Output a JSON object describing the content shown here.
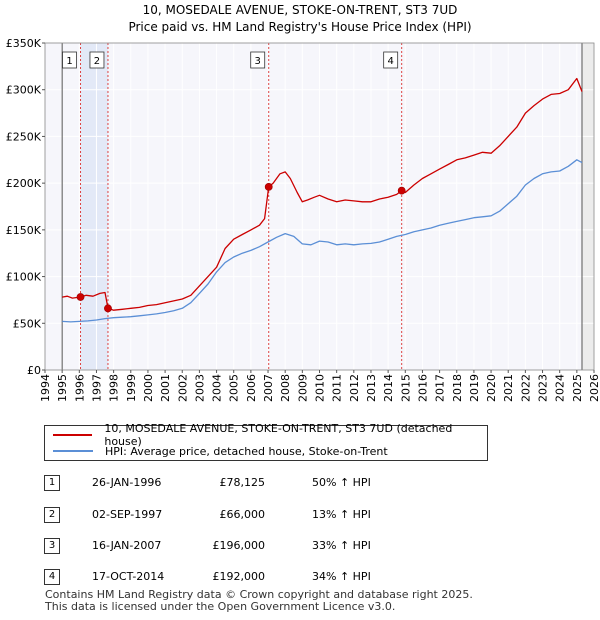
{
  "title": {
    "line1": "10, MOSEDALE AVENUE, STOKE-ON-TRENT, ST3 7UD",
    "line2": "Price paid vs. HM Land Registry's House Price Index (HPI)"
  },
  "chart_data": {
    "type": "line",
    "title": "10, MOSEDALE AVENUE, STOKE-ON-TRENT, ST3 7UD — Price paid vs. HM Land Registry's House Price Index (HPI)",
    "xlabel": "",
    "ylabel": "",
    "xlim": [
      1994,
      2026
    ],
    "ylim": [
      0,
      350000
    ],
    "x_ticks": [
      1994,
      1995,
      1996,
      1997,
      1998,
      1999,
      2000,
      2001,
      2002,
      2003,
      2004,
      2005,
      2006,
      2007,
      2008,
      2009,
      2010,
      2011,
      2012,
      2013,
      2014,
      2015,
      2016,
      2017,
      2018,
      2019,
      2020,
      2021,
      2022,
      2023,
      2024,
      2025,
      2026
    ],
    "y_ticks": [
      {
        "value": 0,
        "label": "£0"
      },
      {
        "value": 50000,
        "label": "£50K"
      },
      {
        "value": 100000,
        "label": "£100K"
      },
      {
        "value": 150000,
        "label": "£150K"
      },
      {
        "value": 200000,
        "label": "£200K"
      },
      {
        "value": 250000,
        "label": "£250K"
      },
      {
        "value": 300000,
        "label": "£300K"
      },
      {
        "value": 350000,
        "label": "£350K"
      }
    ],
    "grid": true,
    "data_start_year": 1995.0,
    "data_end_year": 2025.3,
    "shaded_ranges": [
      [
        1996.07,
        1997.67
      ]
    ],
    "series": [
      {
        "name": "10, MOSEDALE AVENUE, STOKE-ON-TRENT, ST3 7UD (detached house)",
        "color": "#cc0000",
        "x": [
          1995.0,
          1995.3,
          1995.6,
          1996.07,
          1996.4,
          1996.8,
          1997.2,
          1997.5,
          1997.67,
          1998.0,
          1998.5,
          1999.0,
          1999.5,
          2000.0,
          2000.5,
          2001.0,
          2001.5,
          2002.0,
          2002.5,
          2003.0,
          2003.5,
          2004.0,
          2004.5,
          2005.0,
          2005.5,
          2006.0,
          2006.5,
          2006.8,
          2007.04,
          2007.3,
          2007.7,
          2008.0,
          2008.3,
          2008.7,
          2009.0,
          2009.3,
          2009.7,
          2010.0,
          2010.5,
          2011.0,
          2011.5,
          2012.0,
          2012.5,
          2013.0,
          2013.5,
          2014.0,
          2014.5,
          2014.79,
          2015.0,
          2015.5,
          2016.0,
          2016.5,
          2017.0,
          2017.5,
          2018.0,
          2018.5,
          2019.0,
          2019.5,
          2020.0,
          2020.5,
          2021.0,
          2021.5,
          2022.0,
          2022.5,
          2023.0,
          2023.5,
          2024.0,
          2024.5,
          2025.0,
          2025.3
        ],
        "values": [
          78000,
          79000,
          77000,
          78125,
          80000,
          79000,
          82000,
          83000,
          66000,
          64000,
          65000,
          66000,
          67000,
          69000,
          70000,
          72000,
          74000,
          76000,
          80000,
          90000,
          100000,
          110000,
          130000,
          140000,
          145000,
          150000,
          155000,
          162000,
          196000,
          200000,
          210000,
          212000,
          205000,
          190000,
          180000,
          182000,
          185000,
          187000,
          183000,
          180000,
          182000,
          181000,
          180000,
          180000,
          183000,
          185000,
          188000,
          192000,
          190000,
          198000,
          205000,
          210000,
          215000,
          220000,
          225000,
          227000,
          230000,
          233000,
          232000,
          240000,
          250000,
          260000,
          275000,
          283000,
          290000,
          295000,
          296000,
          300000,
          312000,
          298000
        ]
      },
      {
        "name": "HPI: Average price, detached house, Stoke-on-Trent",
        "color": "#5b8fd6",
        "x": [
          1995.0,
          1995.5,
          1996.0,
          1996.5,
          1997.0,
          1997.5,
          1998.0,
          1998.5,
          1999.0,
          1999.5,
          2000.0,
          2000.5,
          2001.0,
          2001.5,
          2002.0,
          2002.5,
          2003.0,
          2003.5,
          2004.0,
          2004.5,
          2005.0,
          2005.5,
          2006.0,
          2006.5,
          2007.0,
          2007.5,
          2008.0,
          2008.5,
          2009.0,
          2009.5,
          2010.0,
          2010.5,
          2011.0,
          2011.5,
          2012.0,
          2012.5,
          2013.0,
          2013.5,
          2014.0,
          2014.5,
          2015.0,
          2015.5,
          2016.0,
          2016.5,
          2017.0,
          2017.5,
          2018.0,
          2018.5,
          2019.0,
          2019.5,
          2020.0,
          2020.5,
          2021.0,
          2021.5,
          2022.0,
          2022.5,
          2023.0,
          2023.5,
          2024.0,
          2024.5,
          2025.0,
          2025.3
        ],
        "values": [
          52000,
          51500,
          52000,
          52500,
          53500,
          55000,
          56000,
          56500,
          57000,
          58000,
          59000,
          60000,
          61500,
          63500,
          66000,
          72000,
          82000,
          92000,
          105000,
          115000,
          121000,
          125000,
          128000,
          132000,
          137000,
          142000,
          146000,
          143000,
          135000,
          134000,
          138000,
          137000,
          134000,
          135000,
          134000,
          135000,
          135500,
          137000,
          140000,
          143000,
          145000,
          148000,
          150000,
          152000,
          155000,
          157000,
          159000,
          161000,
          163000,
          164000,
          165000,
          170000,
          178000,
          186000,
          198000,
          205000,
          210000,
          212000,
          213000,
          218000,
          225000,
          222000
        ]
      }
    ],
    "markers": [
      {
        "num": "1",
        "x": 1996.07,
        "y": 78125
      },
      {
        "num": "2",
        "x": 1997.67,
        "y": 66000
      },
      {
        "num": "3",
        "x": 2007.04,
        "y": 196000
      },
      {
        "num": "4",
        "x": 2014.79,
        "y": 192000
      }
    ]
  },
  "legend": {
    "items": [
      {
        "label": "10, MOSEDALE AVENUE, STOKE-ON-TRENT, ST3 7UD (detached house)",
        "color": "#cc0000"
      },
      {
        "label": "HPI: Average price, detached house, Stoke-on-Trent",
        "color": "#5b8fd6"
      }
    ]
  },
  "transactions": [
    {
      "num": "1",
      "date": "26-JAN-1996",
      "price": "£78,125",
      "hpi": "50% ↑ HPI"
    },
    {
      "num": "2",
      "date": "02-SEP-1997",
      "price": "£66,000",
      "hpi": "13% ↑ HPI"
    },
    {
      "num": "3",
      "date": "16-JAN-2007",
      "price": "£196,000",
      "hpi": "33% ↑ HPI"
    },
    {
      "num": "4",
      "date": "17-OCT-2014",
      "price": "£192,000",
      "hpi": "34% ↑ HPI"
    }
  ],
  "footer": {
    "line1": "Contains HM Land Registry data © Crown copyright and database right 2025.",
    "line2": "This data is licensed under the Open Government Licence v3.0."
  }
}
